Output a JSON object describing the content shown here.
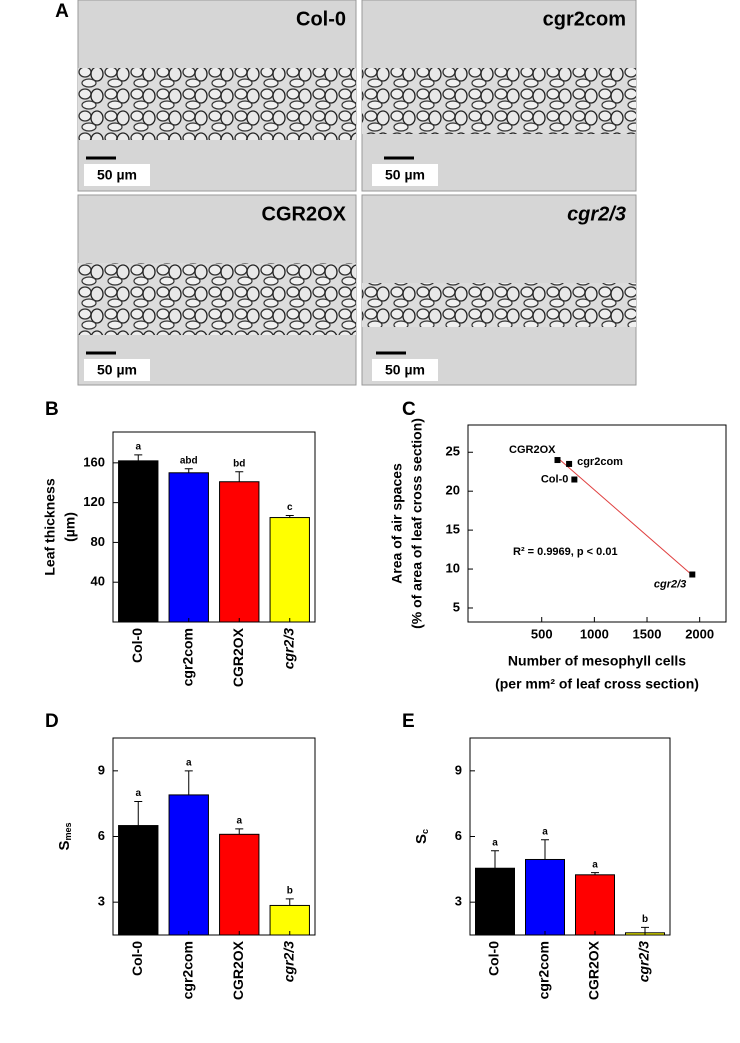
{
  "panel_a": {
    "label": "A",
    "images": [
      {
        "label": "Col-0",
        "scale": "50 µm"
      },
      {
        "label": "cgr2com",
        "scale": "50 µm"
      },
      {
        "label": "CGR2OX",
        "scale": "50 µm"
      },
      {
        "label": "cgr2/3",
        "scale": "50 µm"
      }
    ]
  },
  "chart_data": [
    {
      "type": "bar",
      "panel": "B",
      "y_label": [
        "Leaf thickness",
        "(µm)"
      ],
      "categories": [
        "Col-0",
        "cgr2com",
        "CGR2OX",
        "cgr2/3"
      ],
      "values": [
        162,
        150,
        141,
        105
      ],
      "errors": [
        6,
        4,
        10,
        2
      ],
      "annotations": [
        "a",
        "abd",
        "bd",
        "c"
      ],
      "colors": [
        "#000000",
        "#0000ff",
        "#ff0000",
        "#ffff00"
      ],
      "ylim": [
        0,
        191
      ],
      "yticks": [
        40,
        80,
        120,
        160
      ]
    },
    {
      "type": "scatter",
      "panel": "C",
      "y_label": [
        "Area of air spaces",
        "(% of area of leaf cross section)"
      ],
      "x_label": [
        "Number of mesophyll cells",
        "(per mm² of leaf cross section)"
      ],
      "series": [
        {
          "names": [
            "CGR2OX",
            "cgr2com",
            "Col-0",
            "cgr2/3"
          ],
          "color": "#000000",
          "x": [
            650,
            760,
            810,
            1930
          ],
          "values": [
            24.0,
            23.5,
            21.5,
            9.3
          ]
        }
      ],
      "fit": {
        "color": "#e04040",
        "x": [
          650,
          1930
        ],
        "values": [
          24.3,
          9.2
        ]
      },
      "annotation": "R² = 0.9969, p < 0.01",
      "xlim": [
        -200,
        2250
      ],
      "xticks": [
        500,
        1000,
        1500,
        2000
      ],
      "ylim": [
        3.2,
        28.5
      ],
      "yticks": [
        5,
        10,
        15,
        20,
        25
      ]
    },
    {
      "type": "bar",
      "panel": "D",
      "y_label": {
        "text": "S",
        "sub": "mes"
      },
      "categories": [
        "Col-0",
        "cgr2com",
        "CGR2OX",
        "cgr2/3"
      ],
      "values": [
        6.5,
        7.9,
        6.1,
        2.85
      ],
      "errors": [
        1.1,
        1.1,
        0.25,
        0.3
      ],
      "annotations": [
        "a",
        "a",
        "a",
        "b"
      ],
      "colors": [
        "#000000",
        "#0000ff",
        "#ff0000",
        "#ffff00"
      ],
      "ylim": [
        1.5,
        10.5
      ],
      "yticks": [
        3,
        6,
        9
      ]
    },
    {
      "type": "bar",
      "panel": "E",
      "y_label": {
        "text": "S",
        "sub": "c"
      },
      "categories": [
        "Col-0",
        "cgr2com",
        "CGR2OX",
        "cgr2/3"
      ],
      "values": [
        4.55,
        4.95,
        4.25,
        1.6
      ],
      "errors": [
        0.8,
        0.9,
        0.1,
        0.25
      ],
      "annotations": [
        "a",
        "a",
        "a",
        "b"
      ],
      "colors": [
        "#000000",
        "#0000ff",
        "#ff0000",
        "#ffff00"
      ],
      "ylim": [
        1.5,
        10.5
      ],
      "yticks": [
        3,
        6,
        9
      ]
    }
  ]
}
